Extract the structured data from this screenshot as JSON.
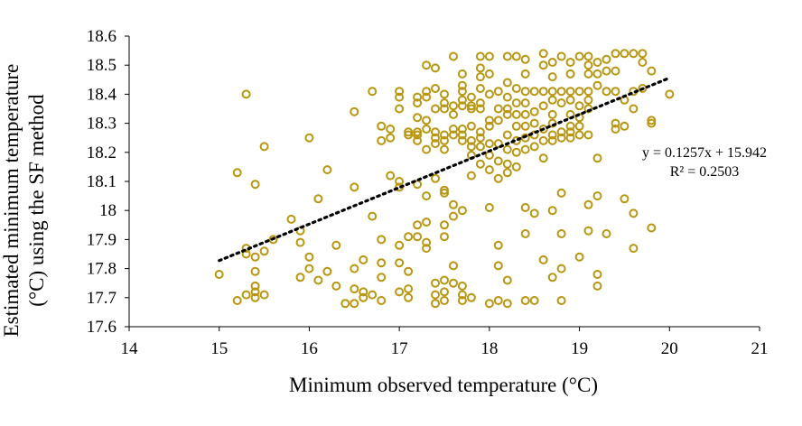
{
  "colors": {
    "marker": "#B8960F",
    "trendline": "#000000",
    "axis": "#000000",
    "background": "#FFFFFF"
  },
  "chart_data": {
    "type": "scatter",
    "title": "",
    "xlabel": "Minimum observed temperature (°C)",
    "ylabel_lines": [
      "Estimated minimum temperature",
      "(°C) using the SF method"
    ],
    "xlim": [
      14,
      21
    ],
    "ylim": [
      17.6,
      18.6
    ],
    "x_ticks": [
      14,
      15,
      16,
      17,
      18,
      19,
      20,
      21
    ],
    "x_tick_labels": [
      "14",
      "15",
      "16",
      "17",
      "18",
      "19",
      "20",
      "21"
    ],
    "y_ticks": [
      17.6,
      17.7,
      17.8,
      17.9,
      18.0,
      18.1,
      18.2,
      18.3,
      18.4,
      18.5,
      18.6
    ],
    "y_tick_labels": [
      "17.6",
      "17.7",
      "17.8",
      "17.9",
      "18",
      "18.1",
      "18.2",
      "18.3",
      "18.4",
      "18.5",
      "18.6"
    ],
    "grid": false,
    "legend": "none",
    "marker": "open-circle",
    "trendline": {
      "type": "linear",
      "slope": 0.1257,
      "intercept": 15.942,
      "x_range": [
        15.0,
        20.0
      ],
      "style": "dotted",
      "equation_text": "y = 0.1257x + 15.942",
      "r2_text": "R² = 0.2503"
    },
    "points": [
      [
        15.0,
        17.78
      ],
      [
        15.2,
        18.13
      ],
      [
        15.2,
        17.69
      ],
      [
        15.3,
        18.4
      ],
      [
        15.3,
        17.87
      ],
      [
        15.3,
        17.85
      ],
      [
        15.3,
        17.71
      ],
      [
        15.4,
        18.09
      ],
      [
        15.4,
        17.84
      ],
      [
        15.4,
        17.79
      ],
      [
        15.4,
        17.74
      ],
      [
        15.4,
        17.72
      ],
      [
        15.4,
        17.7
      ],
      [
        15.5,
        18.22
      ],
      [
        15.5,
        17.86
      ],
      [
        15.5,
        17.71
      ],
      [
        15.6,
        17.9
      ],
      [
        15.8,
        17.97
      ],
      [
        15.9,
        17.93
      ],
      [
        15.9,
        17.89
      ],
      [
        15.9,
        17.77
      ],
      [
        16.0,
        18.25
      ],
      [
        16.0,
        17.84
      ],
      [
        16.0,
        17.8
      ],
      [
        16.1,
        18.04
      ],
      [
        16.1,
        17.76
      ],
      [
        16.2,
        18.14
      ],
      [
        16.2,
        17.79
      ],
      [
        16.3,
        17.88
      ],
      [
        16.3,
        17.74
      ],
      [
        16.4,
        17.68
      ],
      [
        16.5,
        18.34
      ],
      [
        16.5,
        18.08
      ],
      [
        16.5,
        17.8
      ],
      [
        16.5,
        17.73
      ],
      [
        16.5,
        17.68
      ],
      [
        16.6,
        17.83
      ],
      [
        16.6,
        17.72
      ],
      [
        16.6,
        17.7
      ],
      [
        16.7,
        18.41
      ],
      [
        16.7,
        17.98
      ],
      [
        16.7,
        17.71
      ],
      [
        16.8,
        18.29
      ],
      [
        16.8,
        18.24
      ],
      [
        16.8,
        17.9
      ],
      [
        16.8,
        17.82
      ],
      [
        16.8,
        17.77
      ],
      [
        16.8,
        17.69
      ],
      [
        16.9,
        18.28
      ],
      [
        16.9,
        18.25
      ],
      [
        16.9,
        18.12
      ],
      [
        17.0,
        18.41
      ],
      [
        17.0,
        18.39
      ],
      [
        17.0,
        18.35
      ],
      [
        17.0,
        18.1
      ],
      [
        17.0,
        18.08
      ],
      [
        17.0,
        17.88
      ],
      [
        17.0,
        17.82
      ],
      [
        17.0,
        17.72
      ],
      [
        17.1,
        18.27
      ],
      [
        17.1,
        18.26
      ],
      [
        17.1,
        17.91
      ],
      [
        17.1,
        17.79
      ],
      [
        17.1,
        17.73
      ],
      [
        17.1,
        17.7
      ],
      [
        17.2,
        18.39
      ],
      [
        17.2,
        18.37
      ],
      [
        17.2,
        18.32
      ],
      [
        17.2,
        18.27
      ],
      [
        17.2,
        18.26
      ],
      [
        17.2,
        18.24
      ],
      [
        17.2,
        18.09
      ],
      [
        17.2,
        17.95
      ],
      [
        17.2,
        17.91
      ],
      [
        17.3,
        18.5
      ],
      [
        17.3,
        18.41
      ],
      [
        17.3,
        18.39
      ],
      [
        17.3,
        18.31
      ],
      [
        17.3,
        18.28
      ],
      [
        17.3,
        18.21
      ],
      [
        17.3,
        18.05
      ],
      [
        17.3,
        17.96
      ],
      [
        17.3,
        17.89
      ],
      [
        17.3,
        17.87
      ],
      [
        17.4,
        18.49
      ],
      [
        17.4,
        18.42
      ],
      [
        17.4,
        18.35
      ],
      [
        17.4,
        18.27
      ],
      [
        17.4,
        18.25
      ],
      [
        17.4,
        18.23
      ],
      [
        17.4,
        18.11
      ],
      [
        17.4,
        17.75
      ],
      [
        17.4,
        17.71
      ],
      [
        17.4,
        17.68
      ],
      [
        17.5,
        18.4
      ],
      [
        17.5,
        18.37
      ],
      [
        17.5,
        18.35
      ],
      [
        17.5,
        18.26
      ],
      [
        17.5,
        18.24
      ],
      [
        17.5,
        18.21
      ],
      [
        17.5,
        18.07
      ],
      [
        17.5,
        18.06
      ],
      [
        17.5,
        17.95
      ],
      [
        17.5,
        17.91
      ],
      [
        17.5,
        17.76
      ],
      [
        17.5,
        17.72
      ],
      [
        17.5,
        17.69
      ],
      [
        17.6,
        18.53
      ],
      [
        17.6,
        18.36
      ],
      [
        17.6,
        18.33
      ],
      [
        17.6,
        18.28
      ],
      [
        17.6,
        18.26
      ],
      [
        17.6,
        18.02
      ],
      [
        17.6,
        17.98
      ],
      [
        17.6,
        17.81
      ],
      [
        17.6,
        17.75
      ],
      [
        17.7,
        18.47
      ],
      [
        17.7,
        18.43
      ],
      [
        17.7,
        18.41
      ],
      [
        17.7,
        18.38
      ],
      [
        17.7,
        18.36
      ],
      [
        17.7,
        18.28
      ],
      [
        17.7,
        18.26
      ],
      [
        17.7,
        18.24
      ],
      [
        17.7,
        18.0
      ],
      [
        17.7,
        17.74
      ],
      [
        17.7,
        17.71
      ],
      [
        17.7,
        17.69
      ],
      [
        17.8,
        18.39
      ],
      [
        17.8,
        18.36
      ],
      [
        17.8,
        18.35
      ],
      [
        17.8,
        18.29
      ],
      [
        17.8,
        18.24
      ],
      [
        17.8,
        18.22
      ],
      [
        17.8,
        18.19
      ],
      [
        17.8,
        18.12
      ],
      [
        17.8,
        17.7
      ],
      [
        17.9,
        18.53
      ],
      [
        17.9,
        18.49
      ],
      [
        17.9,
        18.46
      ],
      [
        17.9,
        18.42
      ],
      [
        17.9,
        18.37
      ],
      [
        17.9,
        18.35
      ],
      [
        17.9,
        18.27
      ],
      [
        17.9,
        18.25
      ],
      [
        17.9,
        18.22
      ],
      [
        17.9,
        18.16
      ],
      [
        18.0,
        18.53
      ],
      [
        18.0,
        18.47
      ],
      [
        18.0,
        18.4
      ],
      [
        18.0,
        18.31
      ],
      [
        18.0,
        18.29
      ],
      [
        18.0,
        18.23
      ],
      [
        18.0,
        18.19
      ],
      [
        18.0,
        18.14
      ],
      [
        18.0,
        18.01
      ],
      [
        18.0,
        17.68
      ],
      [
        18.1,
        18.41
      ],
      [
        18.1,
        18.35
      ],
      [
        18.1,
        18.31
      ],
      [
        18.1,
        18.23
      ],
      [
        18.1,
        18.17
      ],
      [
        18.1,
        18.11
      ],
      [
        18.1,
        17.88
      ],
      [
        18.1,
        17.81
      ],
      [
        18.1,
        17.69
      ],
      [
        18.2,
        18.53
      ],
      [
        18.2,
        18.44
      ],
      [
        18.2,
        18.39
      ],
      [
        18.2,
        18.35
      ],
      [
        18.2,
        18.33
      ],
      [
        18.2,
        18.26
      ],
      [
        18.2,
        18.21
      ],
      [
        18.2,
        18.16
      ],
      [
        18.2,
        18.13
      ],
      [
        18.2,
        17.76
      ],
      [
        18.2,
        17.68
      ],
      [
        18.3,
        18.53
      ],
      [
        18.3,
        18.42
      ],
      [
        18.3,
        18.37
      ],
      [
        18.3,
        18.33
      ],
      [
        18.3,
        18.29
      ],
      [
        18.3,
        18.24
      ],
      [
        18.3,
        18.2
      ],
      [
        18.3,
        18.15
      ],
      [
        18.4,
        18.52
      ],
      [
        18.4,
        18.47
      ],
      [
        18.4,
        18.41
      ],
      [
        18.4,
        18.37
      ],
      [
        18.4,
        18.33
      ],
      [
        18.4,
        18.29
      ],
      [
        18.4,
        18.25
      ],
      [
        18.4,
        18.21
      ],
      [
        18.4,
        18.01
      ],
      [
        18.4,
        17.92
      ],
      [
        18.4,
        17.69
      ],
      [
        18.5,
        18.41
      ],
      [
        18.5,
        18.34
      ],
      [
        18.5,
        18.3
      ],
      [
        18.5,
        18.26
      ],
      [
        18.5,
        18.22
      ],
      [
        18.5,
        17.99
      ],
      [
        18.5,
        17.69
      ],
      [
        18.6,
        18.54
      ],
      [
        18.6,
        18.5
      ],
      [
        18.6,
        18.41
      ],
      [
        18.6,
        18.36
      ],
      [
        18.6,
        18.28
      ],
      [
        18.6,
        18.24
      ],
      [
        18.6,
        18.18
      ],
      [
        18.6,
        17.83
      ],
      [
        18.7,
        18.51
      ],
      [
        18.7,
        18.46
      ],
      [
        18.7,
        18.41
      ],
      [
        18.7,
        18.38
      ],
      [
        18.7,
        18.33
      ],
      [
        18.7,
        18.3
      ],
      [
        18.7,
        18.26
      ],
      [
        18.7,
        18.24
      ],
      [
        18.7,
        18.0
      ],
      [
        18.7,
        17.77
      ],
      [
        18.8,
        18.53
      ],
      [
        18.8,
        18.41
      ],
      [
        18.8,
        18.37
      ],
      [
        18.8,
        18.27
      ],
      [
        18.8,
        18.25
      ],
      [
        18.8,
        18.06
      ],
      [
        18.8,
        17.92
      ],
      [
        18.8,
        17.8
      ],
      [
        18.8,
        17.69
      ],
      [
        18.9,
        18.51
      ],
      [
        18.9,
        18.47
      ],
      [
        18.9,
        18.41
      ],
      [
        18.9,
        18.38
      ],
      [
        18.9,
        18.33
      ],
      [
        18.9,
        18.29
      ],
      [
        18.9,
        18.27
      ],
      [
        18.9,
        18.25
      ],
      [
        19.0,
        18.53
      ],
      [
        19.0,
        18.41
      ],
      [
        19.0,
        18.36
      ],
      [
        19.0,
        18.32
      ],
      [
        19.0,
        18.29
      ],
      [
        19.0,
        18.26
      ],
      [
        19.0,
        17.84
      ],
      [
        19.1,
        18.53
      ],
      [
        19.1,
        18.5
      ],
      [
        19.1,
        18.47
      ],
      [
        19.1,
        18.41
      ],
      [
        19.1,
        18.38
      ],
      [
        19.1,
        18.35
      ],
      [
        19.1,
        18.26
      ],
      [
        19.1,
        18.02
      ],
      [
        19.1,
        17.93
      ],
      [
        19.2,
        18.51
      ],
      [
        19.2,
        18.47
      ],
      [
        19.2,
        18.43
      ],
      [
        19.2,
        18.18
      ],
      [
        19.2,
        18.05
      ],
      [
        19.2,
        17.78
      ],
      [
        19.2,
        17.74
      ],
      [
        19.3,
        18.52
      ],
      [
        19.3,
        18.48
      ],
      [
        19.3,
        18.41
      ],
      [
        19.3,
        17.92
      ],
      [
        19.4,
        18.54
      ],
      [
        19.4,
        18.48
      ],
      [
        19.4,
        18.41
      ],
      [
        19.4,
        18.3
      ],
      [
        19.4,
        18.28
      ],
      [
        19.5,
        18.54
      ],
      [
        19.5,
        18.38
      ],
      [
        19.5,
        18.29
      ],
      [
        19.5,
        18.04
      ],
      [
        19.6,
        18.54
      ],
      [
        19.6,
        18.41
      ],
      [
        19.6,
        18.35
      ],
      [
        19.6,
        17.99
      ],
      [
        19.6,
        17.87
      ],
      [
        19.7,
        18.54
      ],
      [
        19.7,
        18.51
      ],
      [
        19.7,
        18.42
      ],
      [
        19.8,
        18.48
      ],
      [
        19.8,
        18.31
      ],
      [
        19.8,
        18.3
      ],
      [
        19.8,
        17.94
      ],
      [
        20.0,
        18.4
      ]
    ]
  }
}
